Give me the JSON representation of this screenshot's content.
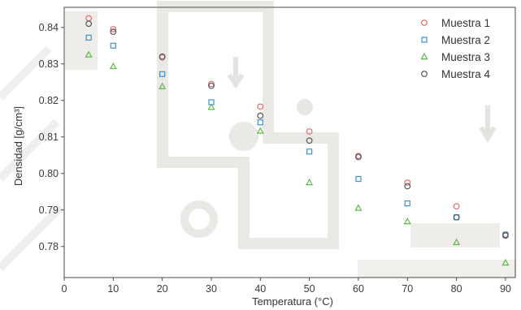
{
  "chart_data": {
    "type": "scatter",
    "xlabel": "Temperatura (°C)",
    "ylabel": "Densidad [g/cm³]",
    "xlim": [
      0,
      92
    ],
    "ylim": [
      0.7715,
      0.8455
    ],
    "xticks": [
      0,
      10,
      20,
      30,
      40,
      50,
      60,
      70,
      80,
      90
    ],
    "yticks": [
      0.78,
      0.79,
      0.8,
      0.81,
      0.82,
      0.83,
      0.84
    ],
    "ytick_labels": [
      "0.78",
      "0.79",
      "0.80",
      "0.81",
      "0.82",
      "0.83",
      "0.84"
    ],
    "grid": false,
    "legend_position": "top-right",
    "series": [
      {
        "name": "Muestra 1",
        "marker": "circle",
        "color": "#e06c6c",
        "x": [
          5,
          10,
          20,
          30,
          40,
          50,
          60,
          70,
          80,
          90
        ],
        "y": [
          0.8425,
          0.8395,
          0.8318,
          0.8245,
          0.8183,
          0.8115,
          0.8048,
          0.7975,
          0.791,
          0.7833
        ]
      },
      {
        "name": "Muestra 2",
        "marker": "square",
        "color": "#3f8fd0",
        "x": [
          5,
          10,
          20,
          30,
          40,
          50,
          60,
          70,
          80,
          90
        ],
        "y": [
          0.8372,
          0.835,
          0.8272,
          0.8195,
          0.814,
          0.806,
          0.7985,
          0.7918,
          0.788,
          0.7832
        ]
      },
      {
        "name": "Muestra 3",
        "marker": "triangle",
        "color": "#5fb84a",
        "x": [
          5,
          10,
          20,
          30,
          40,
          50,
          60,
          70,
          80,
          90
        ],
        "y": [
          0.8325,
          0.8293,
          0.8238,
          0.8181,
          0.8116,
          0.7975,
          0.7905,
          0.7868,
          0.7811,
          0.7755
        ]
      },
      {
        "name": "Muestra 4",
        "marker": "circle",
        "color": "#555555",
        "x": [
          5,
          10,
          20,
          30,
          40,
          50,
          60,
          70,
          80,
          90
        ],
        "y": [
          0.841,
          0.8388,
          0.832,
          0.824,
          0.8158,
          0.809,
          0.8045,
          0.7965,
          0.788,
          0.783
        ]
      }
    ]
  }
}
